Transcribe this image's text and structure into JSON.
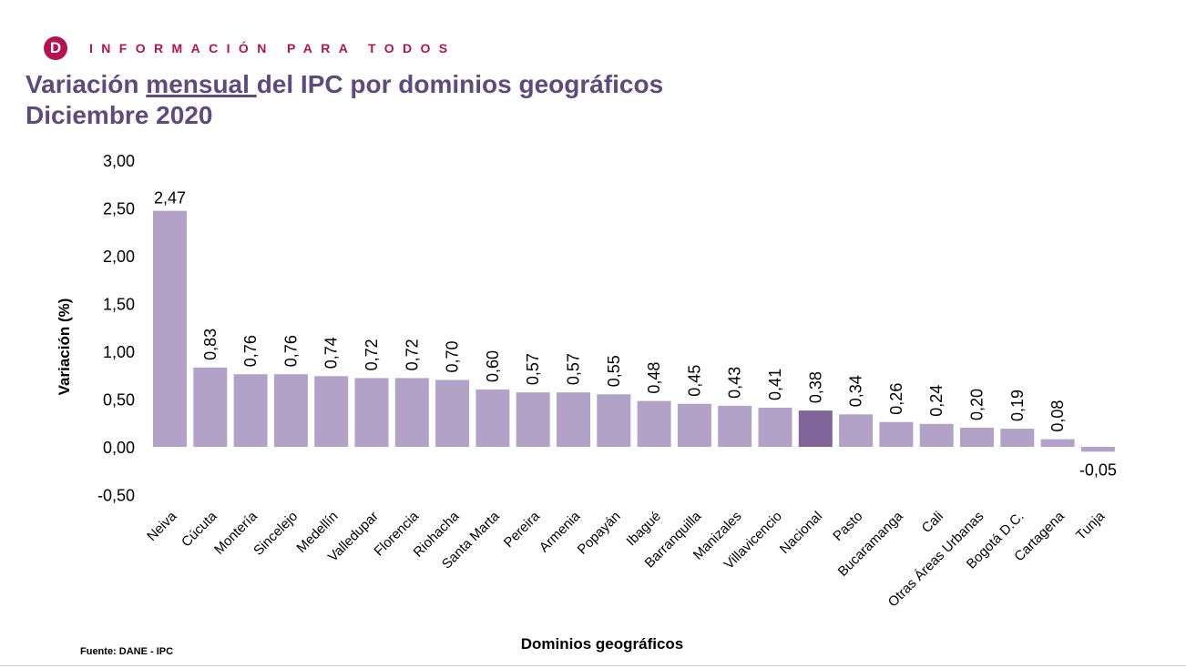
{
  "header": {
    "logo_letter": "D",
    "tagline": "INFORMACIÓN PARA TODOS"
  },
  "title": {
    "part1": "Variación ",
    "underlined": "mensual ",
    "part2": "del IPC por dominios geográficos",
    "line2": "Diciembre 2020"
  },
  "source": "Fuente: DANE - IPC",
  "colors": {
    "bar": "#b3a2c8",
    "highlight": "#7f6599",
    "title": "#5e4a7e",
    "brand": "#b5124f"
  },
  "chart_data": {
    "type": "bar",
    "xlabel": "Dominios geográficos",
    "ylabel": "Variación (%)",
    "ylim": [
      -0.5,
      3.0
    ],
    "yticks": [
      "-0,50",
      "0,00",
      "0,50",
      "1,00",
      "1,50",
      "2,00",
      "2,50",
      "3,00"
    ],
    "grid": false,
    "highlight": "Nacional",
    "categories": [
      "Neiva",
      "Cúcuta",
      "Montería",
      "Sincelejo",
      "Medellín",
      "Valledupar",
      "Florencia",
      "Riohacha",
      "Santa Marta",
      "Pereira",
      "Armenia",
      "Popayán",
      "Ibagué",
      "Barranquilla",
      "Manizales",
      "Villavicencio",
      "Nacional",
      "Pasto",
      "Bucaramanga",
      "Cali",
      "Otras Áreas Urbanas",
      "Bogotá D.C.",
      "Cartagena",
      "Tunja"
    ],
    "values": [
      2.47,
      0.83,
      0.76,
      0.76,
      0.74,
      0.72,
      0.72,
      0.7,
      0.6,
      0.57,
      0.57,
      0.55,
      0.48,
      0.45,
      0.43,
      0.41,
      0.38,
      0.34,
      0.26,
      0.24,
      0.2,
      0.19,
      0.08,
      -0.05
    ],
    "labels": [
      "2,47",
      "0,83",
      "0,76",
      "0,76",
      "0,74",
      "0,72",
      "0,72",
      "0,70",
      "0,60",
      "0,57",
      "0,57",
      "0,55",
      "0,48",
      "0,45",
      "0,43",
      "0,41",
      "0,38",
      "0,34",
      "0,26",
      "0,24",
      "0,20",
      "0,19",
      "0,08",
      "-0,05"
    ]
  }
}
